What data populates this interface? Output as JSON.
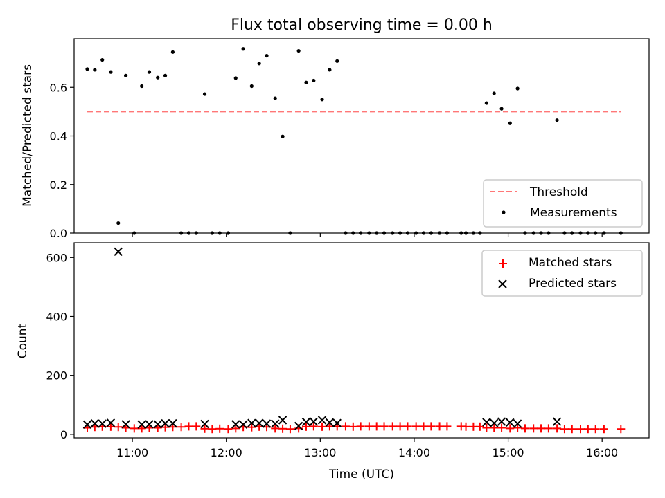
{
  "chart_data": [
    {
      "type": "scatter",
      "title": "Flux total observing time = 0.00 h",
      "xlabel": "",
      "ylabel": "Matched/Predicted stars",
      "xlim": [
        10.38,
        16.5
      ],
      "ylim": [
        0,
        0.8
      ],
      "yticks": [
        0.0,
        0.2,
        0.4,
        0.6
      ],
      "ytick_labels": [
        "0.0",
        "0.2",
        "0.4",
        "0.6"
      ],
      "legend_position": "bottom-right",
      "threshold": {
        "name": "Threshold",
        "value": 0.5,
        "x_range": [
          10.52,
          16.2
        ],
        "color": "#ff7777"
      },
      "series": [
        {
          "name": "Measurements",
          "color": "#000000",
          "x": [
            10.52,
            10.6,
            10.68,
            10.77,
            10.85,
            10.93,
            11.02,
            11.1,
            11.18,
            11.27,
            11.35,
            11.43,
            11.52,
            11.6,
            11.68,
            11.77,
            11.85,
            11.93,
            12.02,
            12.1,
            12.18,
            12.27,
            12.35,
            12.43,
            12.52,
            12.6,
            12.68,
            12.77,
            12.85,
            12.93,
            13.02,
            13.1,
            13.18,
            13.27,
            13.35,
            13.43,
            13.52,
            13.6,
            13.68,
            13.77,
            13.85,
            13.93,
            14.02,
            14.1,
            14.18,
            14.27,
            14.35,
            14.5,
            14.55,
            14.63,
            14.7,
            14.77,
            14.85,
            14.93,
            15.02,
            15.1,
            15.18,
            15.27,
            15.35,
            15.43,
            15.52,
            15.6,
            15.68,
            15.77,
            15.85,
            15.93,
            16.02,
            16.2
          ],
          "y": [
            0.675,
            0.672,
            0.713,
            0.663,
            0.041,
            0.648,
            0.0,
            0.605,
            0.663,
            0.64,
            0.648,
            0.745,
            0.0,
            0.0,
            0.0,
            0.572,
            0.0,
            0.0,
            0.0,
            0.638,
            0.758,
            0.605,
            0.698,
            0.73,
            0.555,
            0.398,
            0.0,
            0.75,
            0.62,
            0.628,
            0.55,
            0.672,
            0.708,
            0.0,
            0.0,
            0.0,
            0.0,
            0.0,
            0.0,
            0.0,
            0.0,
            0.0,
            0.0,
            0.0,
            0.0,
            0.0,
            0.0,
            0.0,
            0.0,
            0.0,
            0.0,
            0.535,
            0.575,
            0.512,
            0.452,
            0.595,
            0.0,
            0.0,
            0.0,
            0.0,
            0.465,
            0.0,
            0.0,
            0.0,
            0.0,
            0.0,
            0.0,
            0.0
          ]
        }
      ]
    },
    {
      "type": "scatter",
      "title": "",
      "xlabel": "Time (UTC)",
      "ylabel": "Count",
      "xlim": [
        10.38,
        16.5
      ],
      "ylim": [
        -12,
        650
      ],
      "yticks": [
        0,
        200,
        400,
        600
      ],
      "ytick_labels": [
        "0",
        "200",
        "400",
        "600"
      ],
      "xticks": [
        11,
        12,
        13,
        14,
        15,
        16
      ],
      "xtick_labels": [
        "11:00",
        "12:00",
        "13:00",
        "14:00",
        "15:00",
        "16:00"
      ],
      "legend_position": "top-right",
      "series": [
        {
          "name": "Matched stars",
          "color": "#ff0000",
          "marker": "plus",
          "x": [
            10.52,
            10.6,
            10.68,
            10.77,
            10.85,
            10.93,
            11.02,
            11.1,
            11.18,
            11.27,
            11.35,
            11.43,
            11.52,
            11.6,
            11.68,
            11.77,
            11.85,
            11.93,
            12.02,
            12.1,
            12.18,
            12.27,
            12.35,
            12.43,
            12.52,
            12.6,
            12.68,
            12.77,
            12.85,
            12.93,
            13.02,
            13.1,
            13.18,
            13.27,
            13.35,
            13.43,
            13.52,
            13.6,
            13.68,
            13.77,
            13.85,
            13.93,
            14.02,
            14.1,
            14.18,
            14.27,
            14.35,
            14.5,
            14.55,
            14.63,
            14.7,
            14.77,
            14.85,
            14.93,
            15.02,
            15.1,
            15.18,
            15.27,
            15.35,
            15.43,
            15.52,
            15.6,
            15.68,
            15.77,
            15.85,
            15.93,
            16.02,
            16.2
          ],
          "y": [
            22,
            25,
            26,
            26,
            25,
            22,
            20,
            20,
            22,
            22,
            24,
            25,
            25,
            27,
            27,
            19,
            18,
            19,
            18,
            20,
            25,
            24,
            26,
            25,
            20,
            19,
            18,
            20,
            26,
            27,
            26,
            27,
            27,
            27,
            26,
            27,
            27,
            27,
            27,
            27,
            27,
            27,
            27,
            27,
            27,
            27,
            27,
            27,
            26,
            26,
            26,
            22,
            22,
            22,
            20,
            22,
            20,
            20,
            20,
            20,
            20,
            18,
            18,
            18,
            18,
            18,
            18,
            18
          ]
        },
        {
          "name": "Predicted stars",
          "color": "#000000",
          "marker": "x",
          "x": [
            10.52,
            10.6,
            10.68,
            10.77,
            10.85,
            10.93,
            11.1,
            11.18,
            11.27,
            11.35,
            11.43,
            11.77,
            12.1,
            12.18,
            12.27,
            12.35,
            12.43,
            12.52,
            12.6,
            12.77,
            12.85,
            12.93,
            13.02,
            13.1,
            13.18,
            14.77,
            14.85,
            14.93,
            15.02,
            15.1,
            15.52
          ],
          "y": [
            33,
            37,
            36,
            39,
            620,
            34,
            33,
            34,
            34,
            37,
            37,
            35,
            34,
            33,
            38,
            38,
            36,
            36,
            48,
            28,
            42,
            43,
            48,
            40,
            38,
            41,
            38,
            43,
            40,
            36,
            43
          ]
        }
      ]
    }
  ]
}
